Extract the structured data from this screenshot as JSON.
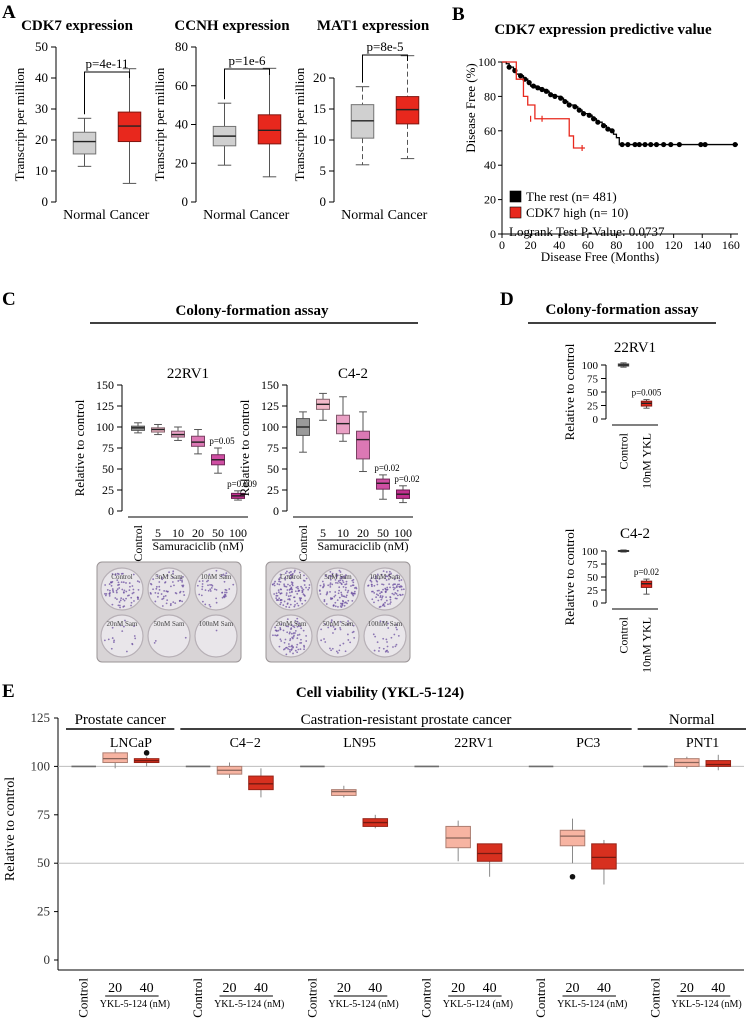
{
  "panel_labels": {
    "a": "A",
    "b": "B",
    "c": "C",
    "d": "D",
    "e": "E"
  },
  "photo_note": "",
  "chart_data": [
    {
      "id": "a1",
      "type": "box",
      "title": "CDK7 expression",
      "ylabel": "Transcript per million",
      "ylim": [
        0,
        50
      ],
      "yticks": [
        0,
        10,
        20,
        30,
        40,
        50
      ],
      "categories": [
        "Normal",
        "Cancer"
      ],
      "colors": [
        "#d0d0d0",
        "#e8281d"
      ],
      "boxes": [
        {
          "min": 11.5,
          "q1": 15.5,
          "median": 19.5,
          "q3": 22.5,
          "max": 27
        },
        {
          "min": 6,
          "q1": 19.5,
          "median": 24.5,
          "q3": 29,
          "max": 43
        }
      ],
      "pvalue": "p=4e-11"
    },
    {
      "id": "a2",
      "type": "box",
      "title": "CCNH expression",
      "ylabel": "Transcript per million",
      "ylim": [
        0,
        80
      ],
      "yticks": [
        0,
        20,
        40,
        60,
        80
      ],
      "categories": [
        "Normal",
        "Cancer"
      ],
      "colors": [
        "#d0d0d0",
        "#e8281d"
      ],
      "boxes": [
        {
          "min": 19,
          "q1": 29,
          "median": 34,
          "q3": 39,
          "max": 51
        },
        {
          "min": 13,
          "q1": 30,
          "median": 37,
          "q3": 45,
          "max": 69
        }
      ],
      "pvalue": "p=1e-6"
    },
    {
      "id": "a3",
      "type": "box",
      "title": "MAT1 expression",
      "ylabel": "Transcript per million",
      "ylim": [
        0,
        25
      ],
      "yticks": [
        0,
        5,
        10,
        15,
        20
      ],
      "categories": [
        "Normal",
        "Cancer"
      ],
      "colors": [
        "#d0d0d0",
        "#e8281d"
      ],
      "boxes": [
        {
          "min": 6,
          "q1": 10.3,
          "median": 13.1,
          "q3": 15.7,
          "max": 18.6
        },
        {
          "min": 7,
          "q1": 12.6,
          "median": 14.9,
          "q3": 17,
          "max": 23.6
        }
      ],
      "pvalue": "p=8e-5"
    },
    {
      "id": "b",
      "type": "survival",
      "title": "CDK7 expression predictive value",
      "xlabel": "Disease Free (Months)",
      "ylabel": "Disease Free (%)",
      "xlim": [
        0,
        165
      ],
      "xticks": [
        0,
        20,
        40,
        60,
        80,
        100,
        120,
        140,
        160
      ],
      "ylim": [
        0,
        100
      ],
      "yticks": [
        0,
        20,
        40,
        60,
        80,
        100
      ],
      "series": [
        {
          "name": "The rest (n= 481)",
          "color": "#000000",
          "points": [
            [
              0,
              100
            ],
            [
              3,
              99
            ],
            [
              5,
              97
            ],
            [
              8,
              95
            ],
            [
              10,
              93
            ],
            [
              12,
              92
            ],
            [
              15,
              90
            ],
            [
              18,
              88
            ],
            [
              20,
              86
            ],
            [
              24,
              85
            ],
            [
              27,
              84
            ],
            [
              30,
              83
            ],
            [
              33,
              81
            ],
            [
              36,
              80
            ],
            [
              40,
              79
            ],
            [
              43,
              77
            ],
            [
              46,
              75
            ],
            [
              50,
              74
            ],
            [
              53,
              72
            ],
            [
              56,
              70
            ],
            [
              60,
              69
            ],
            [
              63,
              67
            ],
            [
              66,
              65
            ],
            [
              70,
              63
            ],
            [
              73,
              61
            ],
            [
              76,
              60
            ],
            [
              78,
              58
            ],
            [
              80,
              56
            ],
            [
              82,
              52
            ],
            [
              165,
              52
            ]
          ],
          "censor": [
            [
              5,
              97
            ],
            [
              9,
              95
            ],
            [
              13,
              92
            ],
            [
              16,
              90
            ],
            [
              19,
              88
            ],
            [
              22,
              86
            ],
            [
              25,
              85
            ],
            [
              28,
              84
            ],
            [
              31,
              83
            ],
            [
              34,
              81
            ],
            [
              37,
              80
            ],
            [
              41,
              79
            ],
            [
              44,
              77
            ],
            [
              47,
              75
            ],
            [
              51,
              74
            ],
            [
              54,
              72
            ],
            [
              57,
              70
            ],
            [
              61,
              69
            ],
            [
              64,
              67
            ],
            [
              67,
              65
            ],
            [
              71,
              63
            ],
            [
              74,
              61
            ],
            [
              77,
              60
            ],
            [
              84,
              52
            ],
            [
              88,
              52
            ],
            [
              93,
              52
            ],
            [
              96,
              52
            ],
            [
              100,
              52
            ],
            [
              104,
              52
            ],
            [
              108,
              52
            ],
            [
              113,
              52
            ],
            [
              118,
              52
            ],
            [
              124,
              52
            ],
            [
              139,
              52
            ],
            [
              142,
              52
            ],
            [
              163,
              52
            ]
          ]
        },
        {
          "name": "CDK7 high (n= 10)",
          "color": "#e8281d",
          "points": [
            [
              0,
              100
            ],
            [
              10,
              90
            ],
            [
              15,
              80
            ],
            [
              18,
              75
            ],
            [
              23,
              67
            ],
            [
              35,
              67
            ],
            [
              47,
              57
            ],
            [
              50,
              50
            ],
            [
              58,
              50
            ]
          ],
          "censor": [
            [
              20,
              67
            ],
            [
              28,
              67
            ],
            [
              56,
              50
            ]
          ]
        }
      ],
      "legend": "Logrank Test P-Value: 0.0737"
    },
    {
      "id": "c1",
      "type": "box",
      "title": "22RV1",
      "ylabel": "Relative to control",
      "xlabel": "Samuraciclib (nM)",
      "ylim": [
        0,
        150
      ],
      "yticks": [
        0,
        25,
        50,
        75,
        100,
        125,
        150
      ],
      "categories": [
        "Control",
        "5",
        "10",
        "20",
        "50",
        "100"
      ],
      "colors": [
        "#9a9a9a",
        "#f2b8c8",
        "#e9a0c4",
        "#dc78b4",
        "#cf4ea3",
        "#c22f8f"
      ],
      "boxes": [
        {
          "min": 93,
          "q1": 96,
          "median": 99,
          "q3": 101,
          "max": 105
        },
        {
          "min": 91,
          "q1": 94,
          "median": 97,
          "q3": 99,
          "max": 103
        },
        {
          "min": 84,
          "q1": 88,
          "median": 91,
          "q3": 95,
          "max": 100
        },
        {
          "min": 68,
          "q1": 77,
          "median": 82,
          "q3": 89,
          "max": 97
        },
        {
          "min": 45,
          "q1": 55,
          "median": 61,
          "q3": 67,
          "max": 75
        },
        {
          "min": 13,
          "q1": 15,
          "median": 18,
          "q3": 21,
          "max": 24
        }
      ],
      "pvals": [
        {
          "cat": 4,
          "text": "p=0.05"
        },
        {
          "cat": 5,
          "text": "p=0.009"
        }
      ]
    },
    {
      "id": "c2",
      "type": "box",
      "title": "C4-2",
      "ylabel": "Relative to control",
      "xlabel": "Samuraciclib (nM)",
      "ylim": [
        0,
        150
      ],
      "yticks": [
        0,
        25,
        50,
        75,
        100,
        125,
        150
      ],
      "categories": [
        "Control",
        "5",
        "10",
        "20",
        "50",
        "100"
      ],
      "colors": [
        "#9a9a9a",
        "#f2b8c8",
        "#e9a0c4",
        "#dc78b4",
        "#cf4ea3",
        "#c22f8f"
      ],
      "boxes": [
        {
          "min": 70,
          "q1": 90,
          "median": 100,
          "q3": 110,
          "max": 118
        },
        {
          "min": 108,
          "q1": 121,
          "median": 127,
          "q3": 133,
          "max": 140
        },
        {
          "min": 83,
          "q1": 92,
          "median": 104,
          "q3": 114,
          "max": 136
        },
        {
          "min": 47,
          "q1": 62,
          "median": 85,
          "q3": 95,
          "max": 118
        },
        {
          "min": 14,
          "q1": 26,
          "median": 33,
          "q3": 38,
          "max": 43
        },
        {
          "min": 10,
          "q1": 15,
          "median": 20,
          "q3": 25,
          "max": 30
        }
      ],
      "pvals": [
        {
          "cat": 4,
          "text": "p=0.02"
        },
        {
          "cat": 5,
          "text": "p=0.02"
        }
      ]
    },
    {
      "id": "d1",
      "type": "box",
      "title": "22RV1",
      "ylabel": "Relative to control",
      "ylim": [
        0,
        100
      ],
      "yticks": [
        0,
        25,
        50,
        75,
        100
      ],
      "categories": [
        "Control",
        "10nM YKL"
      ],
      "colors": [
        "#9a9a9a",
        "#e8281d"
      ],
      "boxes": [
        {
          "min": 96,
          "q1": 98,
          "median": 100,
          "q3": 102,
          "max": 104
        },
        {
          "min": 20,
          "q1": 24,
          "median": 29,
          "q3": 33,
          "max": 36
        }
      ],
      "pvals": [
        {
          "cat": 1,
          "text": "p=0.005"
        }
      ]
    },
    {
      "id": "d2",
      "type": "box",
      "title": "C4-2",
      "ylabel": "Relative to control",
      "ylim": [
        0,
        100
      ],
      "yticks": [
        0,
        25,
        50,
        75,
        100
      ],
      "categories": [
        "Control",
        "10nM YKL"
      ],
      "colors": [
        "#9a9a9a",
        "#e8281d"
      ],
      "boxes": [
        {
          "min": 98,
          "q1": 99,
          "median": 100,
          "q3": 101,
          "max": 102
        },
        {
          "min": 17,
          "q1": 30,
          "median": 37,
          "q3": 42,
          "max": 46
        }
      ],
      "pvals": [
        {
          "cat": 1,
          "text": "p=0.02"
        }
      ]
    },
    {
      "id": "e",
      "type": "box-grouped",
      "title": "Cell viability (YKL-5-124)",
      "ylabel": "Relative to control",
      "ylim": [
        0,
        125
      ],
      "yticks": [
        0,
        25,
        50,
        75,
        100,
        125
      ],
      "hlines": [
        50,
        100
      ],
      "group_headers": [
        {
          "text": "Prostate cancer",
          "from": 0,
          "to": 0
        },
        {
          "text": "Castration-resistant prostate cancer",
          "from": 1,
          "to": 4
        },
        {
          "text": "Normal",
          "from": 5,
          "to": 5
        }
      ],
      "cell_lines": [
        "LNCaP",
        "C4−2",
        "LN95",
        "22RV1",
        "PC3",
        "PNT1"
      ],
      "conditions": [
        "Control",
        "20",
        "40"
      ],
      "xsub": "YKL-5-124 (nM)",
      "colors": [
        "#8c8c8c",
        "#f7b4a2",
        "#d7301f"
      ],
      "groups": [
        {
          "boxes": [
            {
              "min": 100,
              "q1": 100,
              "median": 100,
              "q3": 100,
              "max": 100
            },
            {
              "min": 99,
              "q1": 102,
              "median": 104,
              "q3": 107,
              "max": 109
            },
            {
              "min": 100,
              "q1": 102,
              "median": 103,
              "q3": 104,
              "max": 105
            }
          ],
          "outliers": [
            [
              2,
              107
            ]
          ]
        },
        {
          "boxes": [
            {
              "min": 100,
              "q1": 100,
              "median": 100,
              "q3": 100,
              "max": 100
            },
            {
              "min": 94,
              "q1": 96,
              "median": 98,
              "q3": 100,
              "max": 102
            },
            {
              "min": 84,
              "q1": 88,
              "median": 91,
              "q3": 95,
              "max": 99
            }
          ],
          "outliers": []
        },
        {
          "boxes": [
            {
              "min": 100,
              "q1": 100,
              "median": 100,
              "q3": 100,
              "max": 100
            },
            {
              "min": 84,
              "q1": 85,
              "median": 87,
              "q3": 88,
              "max": 90
            },
            {
              "min": 68,
              "q1": 69,
              "median": 71,
              "q3": 73,
              "max": 75
            }
          ],
          "outliers": []
        },
        {
          "boxes": [
            {
              "min": 100,
              "q1": 100,
              "median": 100,
              "q3": 100,
              "max": 100
            },
            {
              "min": 51,
              "q1": 58,
              "median": 63,
              "q3": 69,
              "max": 72
            },
            {
              "min": 43,
              "q1": 51,
              "median": 55,
              "q3": 60,
              "max": 60
            }
          ],
          "outliers": []
        },
        {
          "boxes": [
            {
              "min": 100,
              "q1": 100,
              "median": 100,
              "q3": 100,
              "max": 100
            },
            {
              "min": 50,
              "q1": 59,
              "median": 64,
              "q3": 67,
              "max": 73
            },
            {
              "min": 39,
              "q1": 47,
              "median": 53,
              "q3": 60,
              "max": 62
            }
          ],
          "outliers": [
            [
              1,
              43
            ]
          ]
        },
        {
          "boxes": [
            {
              "min": 100,
              "q1": 100,
              "median": 100,
              "q3": 100,
              "max": 100
            },
            {
              "min": 99,
              "q1": 100,
              "median": 102,
              "q3": 104,
              "max": 105
            },
            {
              "min": 98,
              "q1": 100,
              "median": 101,
              "q3": 103,
              "max": 106
            }
          ],
          "outliers": []
        }
      ]
    }
  ],
  "colony": {
    "header": "Colony-formation assay",
    "d_header": "Colony-formation assay",
    "plates": [
      {
        "id": "22rv1",
        "wells": [
          "Control",
          "5nM Sam",
          "10nM Sam",
          "20nM Sam",
          "50nM Sam",
          "100nM Sam"
        ],
        "density": [
          0.55,
          0.45,
          0.35,
          0.12,
          0.02,
          0.01
        ]
      },
      {
        "id": "c42",
        "wells": [
          "Control",
          "5nM Sam",
          "10nM Sam",
          "20nM Sam",
          "50nM Sam",
          "100nM Sam"
        ],
        "density": [
          0.9,
          0.85,
          0.8,
          0.6,
          0.25,
          0.2
        ]
      }
    ]
  }
}
